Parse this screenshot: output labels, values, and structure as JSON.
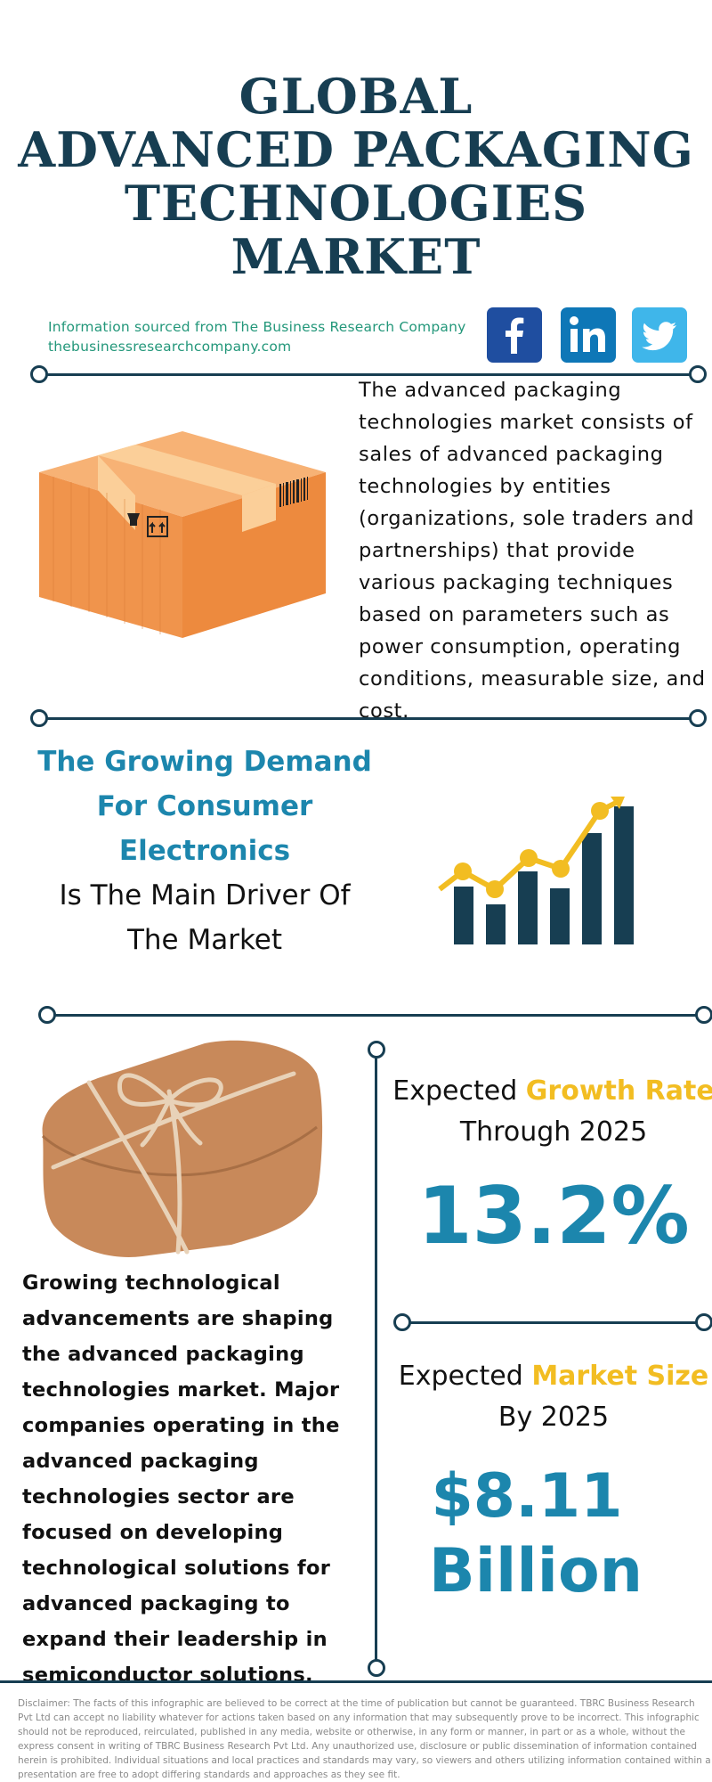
{
  "header": {
    "title_lines": [
      "GLOBAL",
      "ADVANCED PACKAGING",
      "TECHNOLOGIES",
      "MARKET"
    ]
  },
  "source": {
    "line1": "Information sourced from The Business Research Company",
    "line2": "thebusinessresearchcompany.com"
  },
  "social": {
    "icons": [
      "facebook-icon",
      "linkedin-icon",
      "twitter-icon"
    ],
    "facebook_color": "#1f4ea0",
    "linkedin_color": "#0e77b7",
    "twitter_color": "#3fb6ea"
  },
  "description": "The advanced packaging technologies market consists of sales of advanced packaging technologies by entities (organizations, sole traders and partnerships) that provide various packaging techniques based on parameters such as power consumption, operating conditions, measurable size, and cost.",
  "driver": {
    "highlight": "The Growing Demand For Consumer Electronics",
    "rest": "Is The Main Driver Of The Market"
  },
  "growth": {
    "label_prefix": "Expected ",
    "label_highlight": "Growth Rate",
    "label_suffix": "Through 2025",
    "value": "13.2%"
  },
  "market_size": {
    "label_prefix": "Expected ",
    "label_highlight": "Market Size",
    "label_suffix": "By 2025",
    "value_line1": "$8.11",
    "value_line2": "Billion"
  },
  "body_text": "Growing technological advancements are shaping the advanced packaging technologies market. Major companies operating in the advanced packaging technologies sector are focused on developing technological solutions for advanced packaging to expand their leadership in semiconductor solutions.",
  "disclaimer": "Disclaimer: The facts of this infographic are believed to be correct at the time of publication but cannot be guaranteed. TBRC Business Research Pvt Ltd can accept no liability whatever for actions taken based on any information that may subsequently prove to be incorrect. This infographic should not be reproduced, reirculated, published in any media, website or otherwise, in any form or manner, in part or as a whole, without the express consent in writing of TBRC Business Research Pvt Ltd. Any unauthorized use, disclosure or public dissemination of information contained herein is prohibited. Individual situations and local practices and standards may vary, so viewers and others utilizing information contained within a presentation are free to adopt differing standards and approaches as they see fit.",
  "colors": {
    "navy": "#173e52",
    "accent_blue": "#1c86ad",
    "accent_yellow": "#f2bd22",
    "source_green": "#23977a"
  }
}
